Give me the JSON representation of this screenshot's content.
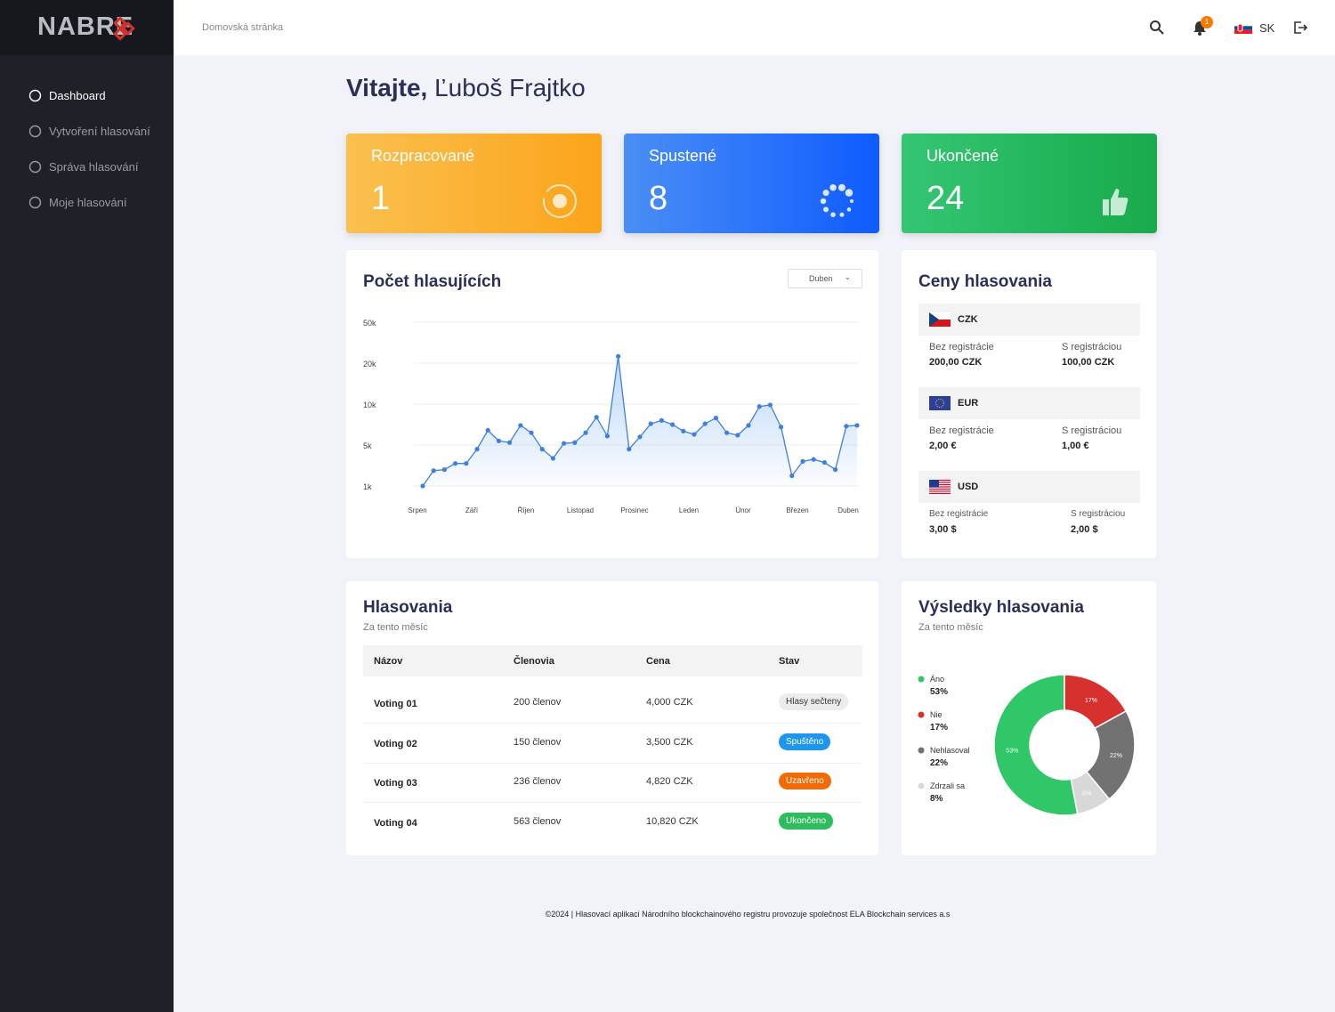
{
  "sidebar": {
    "logo": "NABRE",
    "menu": [
      "Dashboard",
      "Vytvoření hlasování",
      "Správa hlasování",
      "Moje hlasování"
    ]
  },
  "header": {
    "breadcrumb": "Domovská stránka",
    "notifications": 1,
    "language": "SK"
  },
  "welcome": {
    "greeting": "Vitajte,",
    "user": "Ľuboš Frajtko"
  },
  "stats": [
    {
      "label": "Rozpracované",
      "value": 1
    },
    {
      "label": "Spustené",
      "value": 8
    },
    {
      "label": "Ukončené",
      "value": 24
    }
  ],
  "voters_chart": {
    "type": "line",
    "title": "Počet hlasujících",
    "filter": "Duben",
    "color": "#3f7fe0",
    "categories": [
      "Srpen",
      null,
      null,
      null,
      null,
      "Září",
      null,
      null,
      null,
      null,
      "Říjen",
      null,
      null,
      null,
      null,
      "Listopad",
      null,
      null,
      null,
      null,
      "Prosinec",
      null,
      null,
      null,
      null,
      "Leden",
      null,
      null,
      null,
      null,
      "Únor",
      null,
      null,
      null,
      null,
      "Březen",
      null,
      null,
      null,
      null,
      "Duben"
    ],
    "values": [
      1000,
      2500,
      2600,
      3200,
      3200,
      4600,
      6800,
      5500,
      5300,
      7400,
      6500,
      4600,
      3700,
      5200,
      5300,
      6500,
      8400,
      6100,
      25000,
      4600,
      6000,
      7600,
      8000,
      7500,
      6700,
      6300,
      7600,
      8300,
      6500,
      6200,
      7400,
      9700,
      9900,
      7200,
      2000,
      3400,
      3600,
      3300,
      2600,
      7300,
      7400
    ],
    "ylim": [
      1000,
      50000
    ],
    "yticks": [
      {
        "value": 1000,
        "label": "1k"
      },
      {
        "value": 5000,
        "label": "5k"
      },
      {
        "value": 10000,
        "label": "10k"
      },
      {
        "value": 20000,
        "label": "20k"
      },
      {
        "value": 50000,
        "label": "50k"
      }
    ],
    "grid": true
  },
  "prices": {
    "title": "Ceny hlasovania",
    "currencies": [
      {
        "code": "CZK",
        "without_label": "Bez registrácie",
        "without": "200,00 CZK",
        "with_label": "S registráciou",
        "with": "100,00 CZK"
      },
      {
        "code": "EUR",
        "without_label": "Bez registrácie",
        "without": "2,00 €",
        "with_label": "S registráciou",
        "with": "1,00 €"
      },
      {
        "code": "USD",
        "without_label": "Bez registrácie",
        "without": "3,00 $",
        "with_label": "S registráciou",
        "with": "2,00 $"
      }
    ]
  },
  "votings": {
    "title": "Hlasovania",
    "subtitle": "Za tento měsíc",
    "columns": [
      "Názov",
      "Členovia",
      "Cena",
      "Stav"
    ],
    "rows": [
      [
        "Voting 01",
        "200 členov",
        "4,000 CZK",
        "Hlasy sečteny"
      ],
      [
        "Voting 02",
        "150 členov",
        "3,500 CZK",
        "Spuštěno"
      ],
      [
        "Voting 03",
        "236 členov",
        "4,820 CZK",
        "Uzavřeno"
      ],
      [
        "Voting 04",
        "563 členov",
        "10,820 CZK",
        "Ukončeno"
      ]
    ]
  },
  "results_chart": {
    "type": "donut",
    "title": "Výsledky hlasovania",
    "subtitle": "Za tento měsíc",
    "categories": [
      "Áno",
      "Nie",
      "Nehlasoval",
      "Zdrzali sa"
    ],
    "values": [
      53,
      17,
      22,
      8
    ],
    "value_labels": [
      "53%",
      "17%",
      "22%",
      "8%"
    ],
    "colors": [
      "#2fc768",
      "#d6312f",
      "#727272",
      "#d8d8d8"
    ]
  },
  "footer": "©2024 | Hlasovací aplikaci Národního blockchainového registru provozuje společnost ELA Blockchain services a.s"
}
